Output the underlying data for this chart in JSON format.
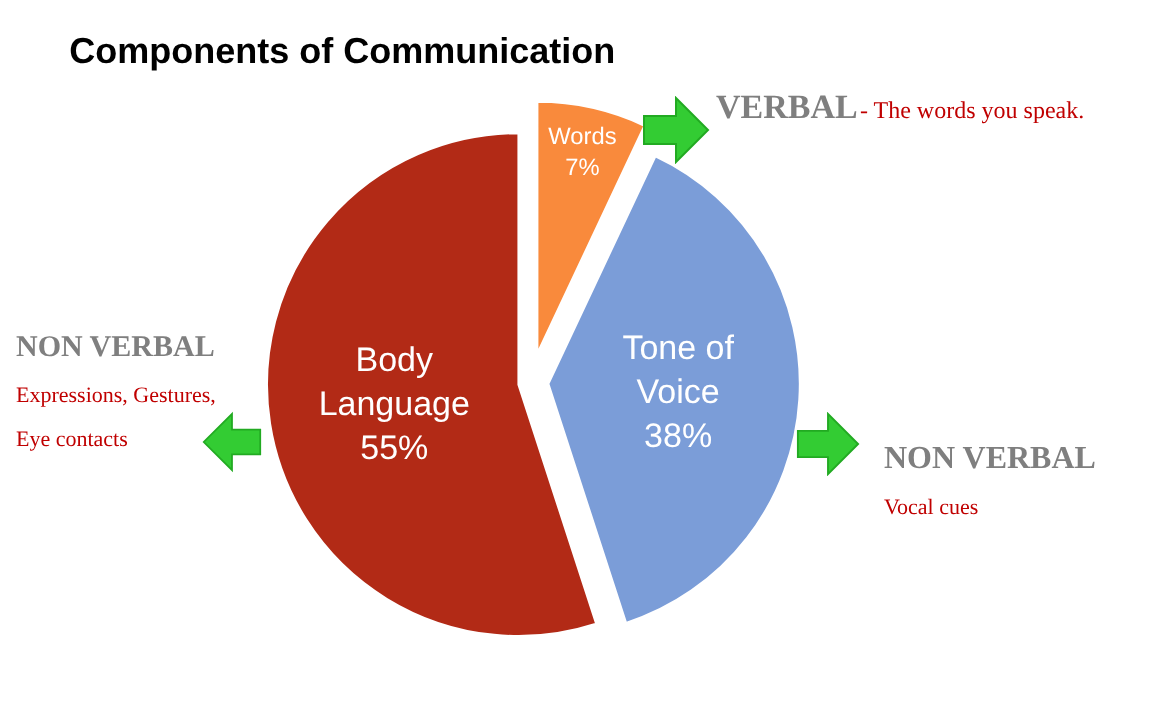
{
  "chart_data": {
    "type": "pie",
    "title": "Components of Communication",
    "categories": [
      "Words",
      "Tone of Voice",
      "Body Language"
    ],
    "values": [
      7,
      38,
      55
    ],
    "value_labels": [
      "7%",
      "38%",
      "55%"
    ],
    "colors": [
      "#f98a3c",
      "#7b9dd8",
      "#b22a16"
    ],
    "annotations": [
      "VERBAL",
      "- The words you speak.",
      "NON VERBAL",
      "Expressions, Gestures,",
      "Eye contacts",
      "NON VERBAL",
      "Vocal cues"
    ]
  }
}
